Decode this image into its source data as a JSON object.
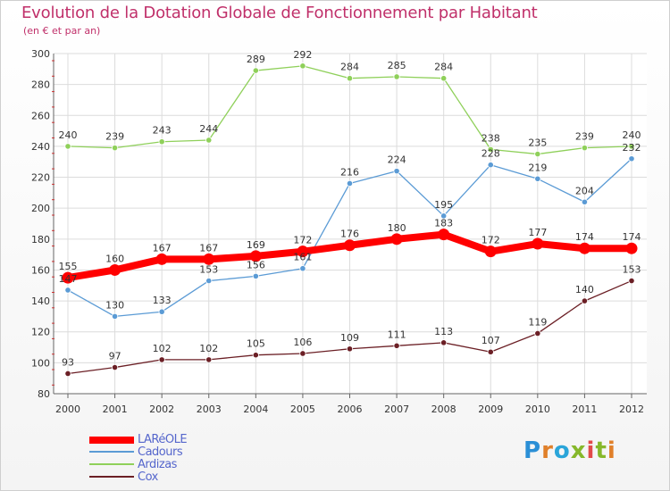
{
  "title": "Evolution de la Dotation Globale de Fonctionnement par Habitant",
  "subtitle": "(en € et par an)",
  "logo_text": "Proxiti",
  "colors": {
    "LARéOLE": "#ff0000",
    "Cadours": "#5b9bd5",
    "Ardizas": "#8fd05a",
    "Cox": "#6b1f25",
    "title": "#c0306a",
    "legend_text": "#5566cc"
  },
  "chart_data": {
    "type": "line",
    "x": [
      "2000",
      "2001",
      "2002",
      "2003",
      "2004",
      "2005",
      "2006",
      "2007",
      "2008",
      "2009",
      "2010",
      "2011",
      "2012"
    ],
    "ylim": [
      80,
      300
    ],
    "yticks": [
      80,
      100,
      120,
      140,
      160,
      180,
      200,
      220,
      240,
      260,
      280,
      300
    ],
    "grid": true,
    "legend_position": "bottom-left",
    "series": [
      {
        "name": "LARéOLE",
        "values": [
          155,
          160,
          167,
          167,
          169,
          172,
          176,
          180,
          183,
          172,
          177,
          174,
          174
        ]
      },
      {
        "name": "Cadours",
        "values": [
          147,
          130,
          133,
          153,
          156,
          161,
          216,
          224,
          195,
          228,
          219,
          204,
          232
        ]
      },
      {
        "name": "Ardizas",
        "values": [
          240,
          239,
          243,
          244,
          289,
          292,
          284,
          285,
          284,
          238,
          235,
          239,
          240
        ]
      },
      {
        "name": "Cox",
        "values": [
          93,
          97,
          102,
          102,
          105,
          106,
          109,
          111,
          113,
          107,
          119,
          140,
          153
        ]
      }
    ]
  }
}
